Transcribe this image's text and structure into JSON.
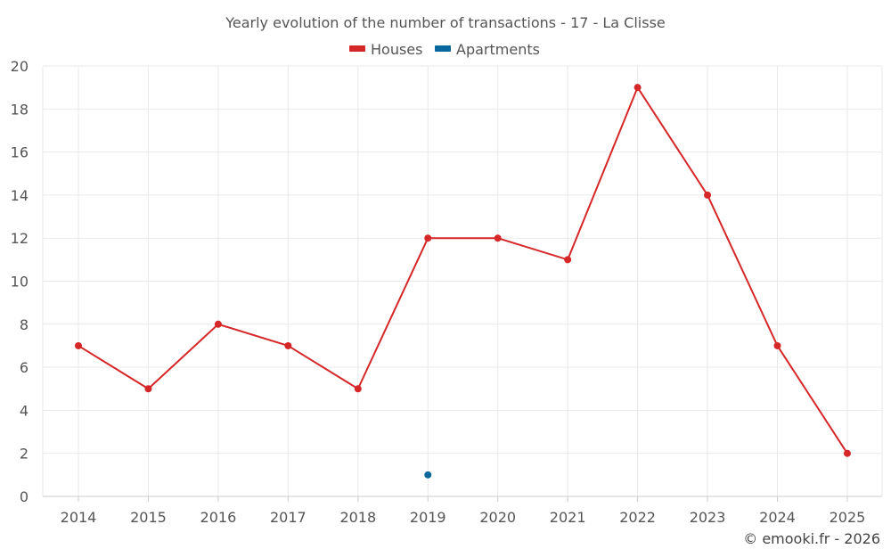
{
  "chart_data": {
    "type": "line",
    "title": "Yearly evolution of the number of transactions - 17 - La Clisse",
    "categories": [
      "2014",
      "2015",
      "2016",
      "2017",
      "2018",
      "2019",
      "2020",
      "2021",
      "2022",
      "2023",
      "2024",
      "2025"
    ],
    "series": [
      {
        "name": "Houses",
        "color": "#d62728",
        "values": [
          7,
          5,
          8,
          7,
          5,
          12,
          12,
          11,
          19,
          14,
          7,
          2
        ]
      },
      {
        "name": "Apartments",
        "color": "#08679c",
        "values": [
          null,
          null,
          null,
          null,
          null,
          1,
          null,
          null,
          null,
          null,
          null,
          null
        ]
      }
    ],
    "ylim": [
      0,
      20
    ],
    "yticks": [
      0,
      2,
      4,
      6,
      8,
      10,
      12,
      14,
      16,
      18,
      20
    ],
    "grid": true,
    "legend_position": "top-center"
  },
  "credit": "© emooki.fr - 2026"
}
